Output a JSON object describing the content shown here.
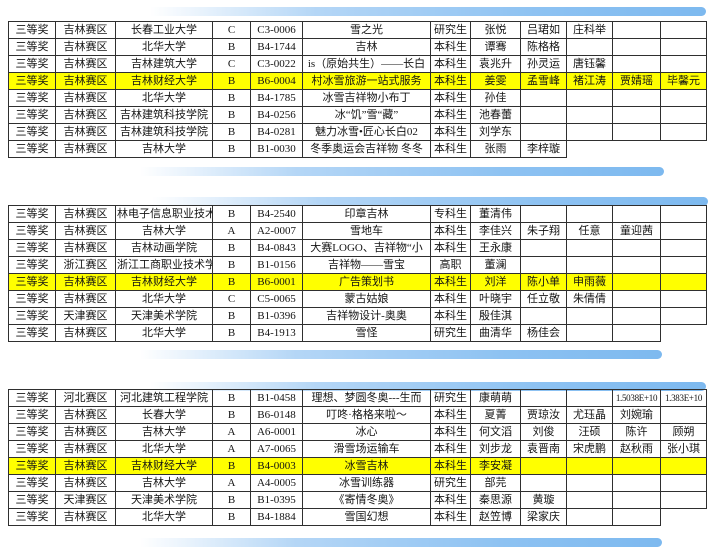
{
  "decor": {
    "bar_color_strong": "#7db9ef",
    "bar_color_soft": "#b4d6f6",
    "highlight_color": "#ffff00"
  },
  "columns": [
    "award",
    "region",
    "school",
    "grade",
    "code",
    "title",
    "student-type",
    "name-1",
    "name-2",
    "name-3",
    "name-4",
    "name-5"
  ],
  "sections": [
    {
      "highlight_row": 3,
      "rows": [
        [
          "三等奖",
          "吉林赛区",
          "长春工业大学",
          "C",
          "C3-0006",
          "雪之光",
          "研究生",
          "张悦",
          "吕珺如",
          "庄科举",
          "",
          ""
        ],
        [
          "三等奖",
          "吉林赛区",
          "北华大学",
          "B",
          "B4-1744",
          "吉林",
          "本科生",
          "谭骞",
          "陈格格",
          "",
          "",
          ""
        ],
        [
          "三等奖",
          "吉林赛区",
          "吉林建筑大学",
          "C",
          "C3-0022",
          "is（原始共生）——长白",
          "本科生",
          "袁兆升",
          "孙灵运",
          "唐钰馨",
          "",
          ""
        ],
        [
          "三等奖",
          "吉林赛区",
          "吉林财经大学",
          "B",
          "B6-0004",
          "村冰雪旅游一站式服务",
          "本科生",
          "姜雯",
          "孟雪峰",
          "褚江涛",
          "贾婧瑶",
          "毕馨元"
        ],
        [
          "三等奖",
          "吉林赛区",
          "北华大学",
          "B",
          "B4-1785",
          "冰雪吉祥物小布丁",
          "本科生",
          "孙佳",
          "",
          "",
          "",
          ""
        ],
        [
          "三等奖",
          "吉林赛区",
          "吉林建筑科技学院",
          "B",
          "B4-0256",
          "冰“饥”雪“藏”",
          "本科生",
          "池春蕾",
          "",
          "",
          "",
          ""
        ],
        [
          "三等奖",
          "吉林赛区",
          "吉林建筑科技学院",
          "B",
          "B4-0281",
          "魅力冰雪•匠心长白02",
          "本科生",
          "刘学东",
          "",
          "",
          "",
          ""
        ],
        [
          "三等奖",
          "吉林赛区",
          "吉林大学",
          "B",
          "B1-0030",
          "冬季奥运会吉祥物 冬冬",
          "本科生",
          "张雨",
          "李梓璇",
          null,
          null,
          null
        ]
      ]
    },
    {
      "highlight_row": 4,
      "rows": [
        [
          "三等奖",
          "吉林赛区",
          "林电子信息职业技术学",
          "B",
          "B4-2540",
          "印章吉林",
          "专科生",
          "董清伟",
          "",
          "",
          "",
          ""
        ],
        [
          "三等奖",
          "吉林赛区",
          "吉林大学",
          "A",
          "A2-0007",
          "雪地车",
          "本科生",
          "李佳兴",
          "朱子翔",
          "任意",
          "童迎茜",
          ""
        ],
        [
          "三等奖",
          "吉林赛区",
          "吉林动画学院",
          "B",
          "B4-0843",
          "大赛LOGO、吉祥物“小",
          "本科生",
          "王永康",
          "",
          "",
          "",
          ""
        ],
        [
          "三等奖",
          "浙江赛区",
          "浙江工商职业技术学院",
          "B",
          "B1-0156",
          "吉祥物——雪宝",
          "高职",
          "董澜",
          "",
          "",
          "",
          ""
        ],
        [
          "三等奖",
          "吉林赛区",
          "吉林财经大学",
          "B",
          "B6-0001",
          "广告策划书",
          "本科生",
          "刘洋",
          "陈小单",
          "申雨薇",
          "",
          ""
        ],
        [
          "三等奖",
          "吉林赛区",
          "北华大学",
          "C",
          "C5-0065",
          "蒙古姑娘",
          "本科生",
          "叶晓宇",
          "任立敬",
          "朱倩倩",
          "",
          ""
        ],
        [
          "三等奖",
          "天津赛区",
          "天津美术学院",
          "B",
          "B1-0396",
          "吉祥物设计-奥奥",
          "本科生",
          "殷佳淇",
          "",
          "",
          "",
          ""
        ],
        [
          "三等奖",
          "吉林赛区",
          "北华大学",
          "B",
          "B4-1913",
          "雪怪",
          "研究生",
          "曲清华",
          "杨佳会",
          "",
          "",
          null
        ]
      ]
    },
    {
      "highlight_row": 4,
      "rows": [
        [
          "三等奖",
          "河北赛区",
          "河北建筑工程学院",
          "B",
          "B1-0458",
          "理想、梦圆冬奥---生而",
          "研究生",
          "康萌萌",
          "",
          "",
          "1.5038E+10",
          "1.383E+10"
        ],
        [
          "三等奖",
          "吉林赛区",
          "长春大学",
          "B",
          "B6-0148",
          "叮咚·格格来啦～",
          "本科生",
          "夏菁",
          "贾琼汝",
          "尤珏晶",
          "刘婉瑜",
          ""
        ],
        [
          "三等奖",
          "吉林赛区",
          "吉林大学",
          "A",
          "A6-0001",
          "冰心",
          "本科生",
          "何文滔",
          "刘俊",
          "汪硕",
          "陈许",
          "顾朔"
        ],
        [
          "三等奖",
          "吉林赛区",
          "北华大学",
          "A",
          "A7-0065",
          "滑雪场运输车",
          "本科生",
          "刘步龙",
          "袁晋南",
          "宋虎鹏",
          "赵秋雨",
          "张小琪"
        ],
        [
          "三等奖",
          "吉林赛区",
          "吉林财经大学",
          "B",
          "B4-0003",
          "冰雪吉林",
          "本科生",
          "李安凝",
          "",
          "",
          "",
          ""
        ],
        [
          "三等奖",
          "吉林赛区",
          "吉林大学",
          "A",
          "A4-0005",
          "冰雪训练器",
          "研究生",
          "部芫",
          "",
          "",
          "",
          ""
        ],
        [
          "三等奖",
          "天津赛区",
          "天津美术学院",
          "B",
          "B1-0395",
          "《寄情冬奥》",
          "本科生",
          "秦思源",
          "黄璇",
          "",
          "",
          ""
        ],
        [
          "三等奖",
          "吉林赛区",
          "北华大学",
          "B",
          "B4-1884",
          "雪国幻想",
          "本科生",
          "赵笠博",
          "梁家庆",
          "",
          "",
          null
        ]
      ]
    }
  ]
}
